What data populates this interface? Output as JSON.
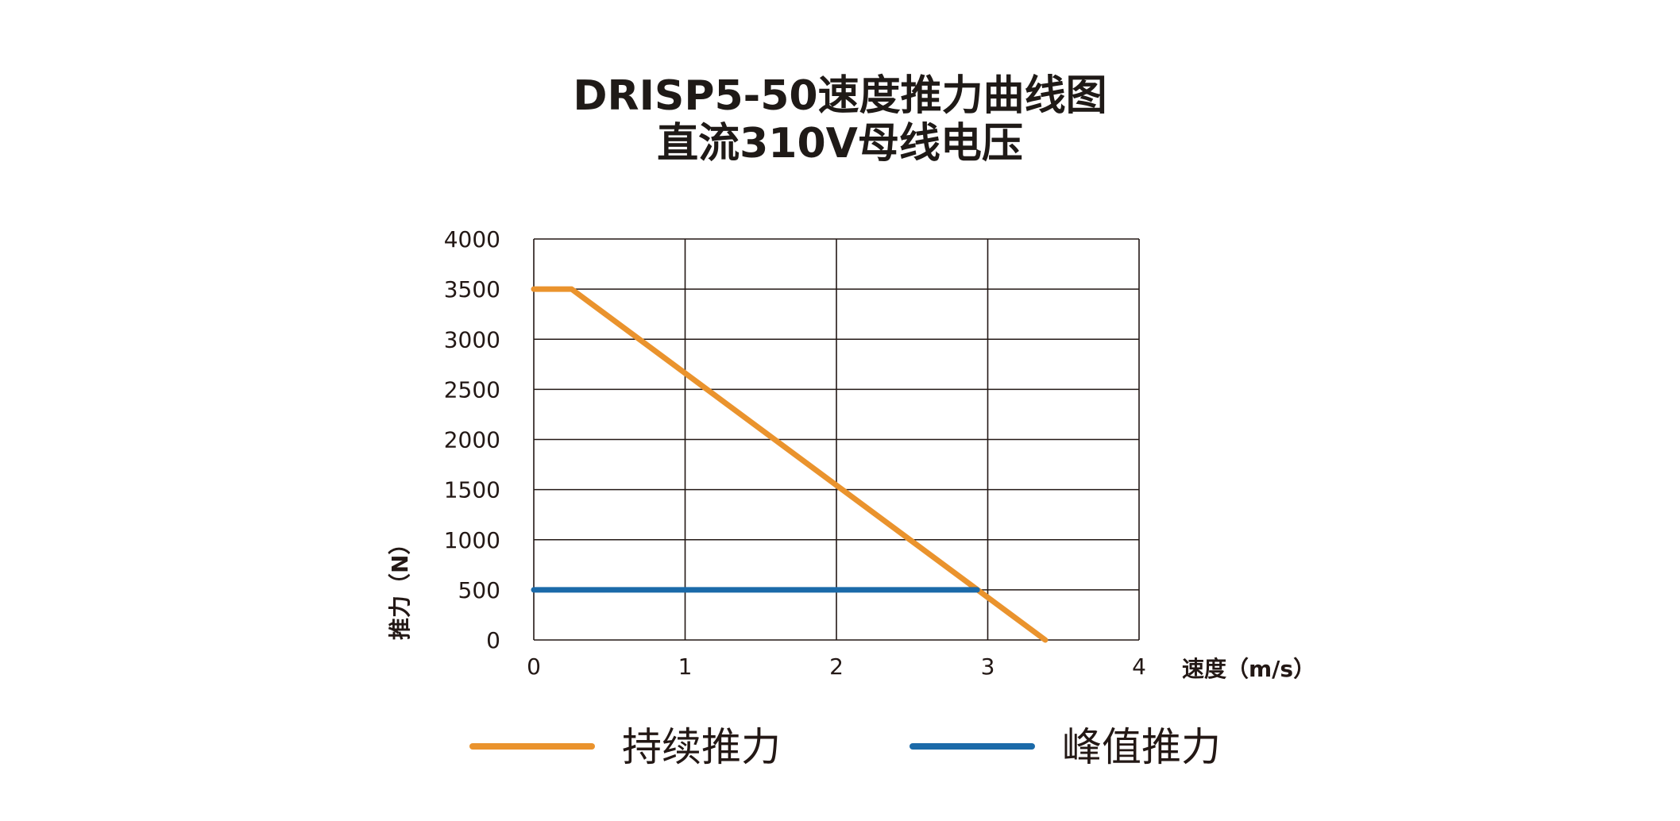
{
  "header": {
    "title_line1": "DRISP5-50速度推力曲线图",
    "title_line2": "直流310V母线电压"
  },
  "chart_data": {
    "type": "line",
    "title": "DRISP5-50速度推力曲线图 直流310V母线电压",
    "xlabel": "速度（m/s）",
    "ylabel": "推力（N）",
    "xlim": [
      0,
      4
    ],
    "ylim": [
      0,
      4000
    ],
    "x_ticks": [
      "0",
      "1",
      "2",
      "3",
      "4"
    ],
    "y_ticks": [
      "0",
      "500",
      "1000",
      "1500",
      "2000",
      "2500",
      "3000",
      "3500",
      "4000"
    ],
    "grid": true,
    "legend_position": "bottom",
    "series": [
      {
        "name": "持续推力",
        "color": "#ea932d",
        "points": [
          [
            0,
            3500
          ],
          [
            0.25,
            3500
          ],
          [
            3.38,
            0
          ]
        ]
      },
      {
        "name": "峰值推力",
        "color": "#1b6aa9",
        "points": [
          [
            0,
            500
          ],
          [
            2.93,
            500
          ]
        ]
      }
    ]
  }
}
